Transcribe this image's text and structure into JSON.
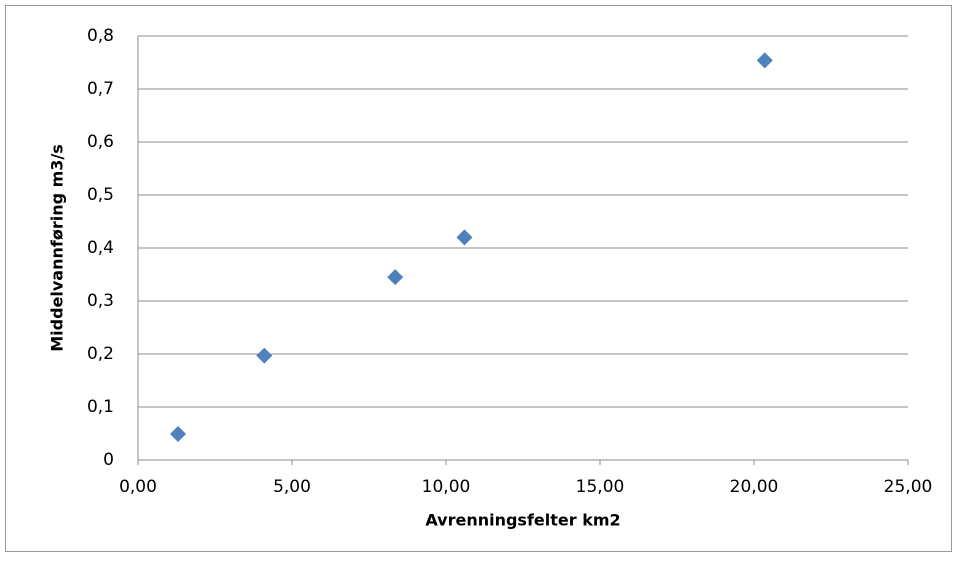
{
  "chart_data": {
    "type": "scatter",
    "xlabel": "Avrenningsfelter km2",
    "ylabel": "Middelvannføring m3/s",
    "x": [
      1.3,
      4.1,
      8.35,
      10.6,
      20.35
    ],
    "series": [
      {
        "color": "#4f81bd",
        "values": [
          0.049,
          0.197,
          0.345,
          0.42,
          0.754
        ]
      }
    ],
    "xlim": [
      0,
      25
    ],
    "xticks": [
      {
        "value": 0,
        "label": "0,00"
      },
      {
        "value": 5,
        "label": "5,00"
      },
      {
        "value": 10,
        "label": "10,00"
      },
      {
        "value": 15,
        "label": "15,00"
      },
      {
        "value": 20,
        "label": "20,00"
      },
      {
        "value": 25,
        "label": "25,00"
      }
    ],
    "ylim": [
      0,
      0.8
    ],
    "yticks": [
      0,
      {
        "value": 0.1,
        "label": "0,1"
      },
      {
        "value": 0.2,
        "label": "0,2"
      },
      {
        "value": 0.3,
        "label": "0,3"
      },
      {
        "value": 0.4,
        "label": "0,4"
      },
      {
        "value": 0.5,
        "label": "0,5"
      },
      {
        "value": 0.6,
        "label": "0,6"
      },
      {
        "value": 0.7,
        "label": "0,7"
      },
      {
        "value": 0.8,
        "label": "0,8"
      }
    ],
    "grid": true
  }
}
